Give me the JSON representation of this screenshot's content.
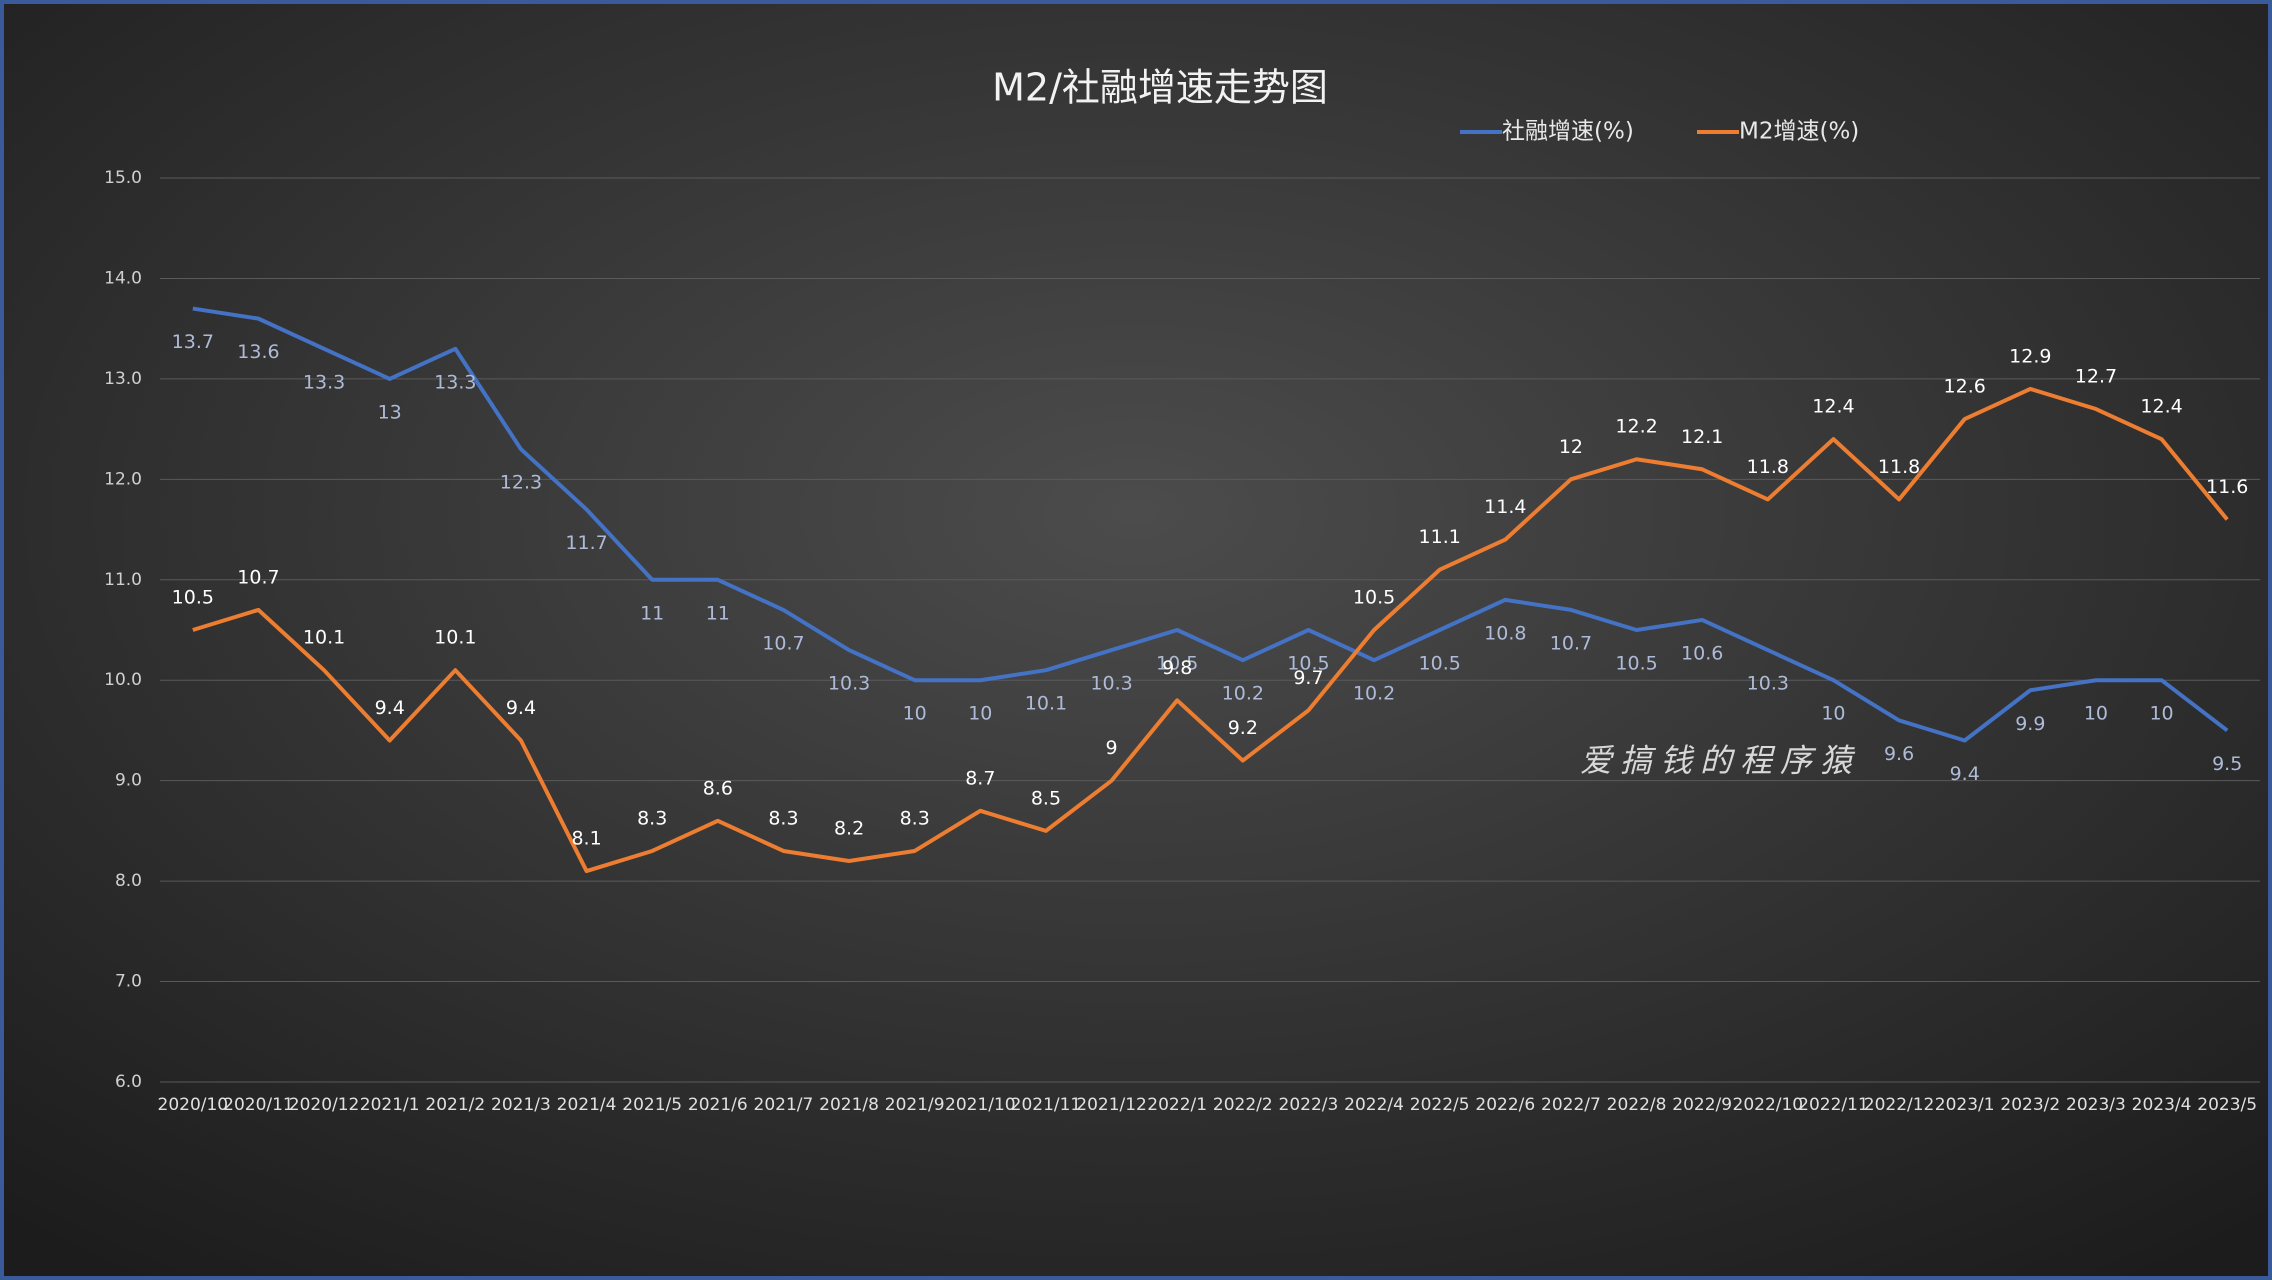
{
  "chart_data": {
    "type": "line",
    "title": "M2/社融增速走势图",
    "categories": [
      "2020/10",
      "2020/11",
      "2020/12",
      "2021/1",
      "2021/2",
      "2021/3",
      "2021/4",
      "2021/5",
      "2021/6",
      "2021/7",
      "2021/8",
      "2021/9",
      "2021/10",
      "2021/11",
      "2021/12",
      "2022/1",
      "2022/2",
      "2022/3",
      "2022/4",
      "2022/5",
      "2022/6",
      "2022/7",
      "2022/8",
      "2022/9",
      "2022/10",
      "2022/11",
      "2022/12",
      "2023/1",
      "2023/2",
      "2023/3",
      "2023/4",
      "2023/5"
    ],
    "series": [
      {
        "name": "社融增速(%)",
        "color": "#4472c4",
        "values": [
          13.7,
          13.6,
          13.3,
          13,
          13.3,
          12.3,
          11.7,
          11,
          11,
          10.7,
          10.3,
          10,
          10,
          10.1,
          10.3,
          10.5,
          10.2,
          10.5,
          10.2,
          10.5,
          10.8,
          10.7,
          10.5,
          10.6,
          10.3,
          10,
          9.6,
          9.4,
          9.9,
          10,
          10,
          9.5
        ]
      },
      {
        "name": "M2增速(%)",
        "color": "#ed7d31",
        "values": [
          10.5,
          10.7,
          10.1,
          9.4,
          10.1,
          9.4,
          8.1,
          8.3,
          8.6,
          8.3,
          8.2,
          8.3,
          8.7,
          8.5,
          9,
          9.8,
          9.2,
          9.7,
          10.5,
          11.1,
          11.4,
          12,
          12.2,
          12.1,
          11.8,
          12.4,
          11.8,
          12.6,
          12.9,
          12.7,
          12.4,
          11.6
        ]
      }
    ],
    "ylim": [
      6,
      15
    ],
    "yticks": [
      {
        "value": 6,
        "label": "6.0"
      },
      {
        "value": 7,
        "label": "7.0"
      },
      {
        "value": 8,
        "label": "8.0"
      },
      {
        "value": 9,
        "label": "9.0"
      },
      {
        "value": 10,
        "label": "10.0"
      },
      {
        "value": 11,
        "label": "11.0"
      },
      {
        "value": 12,
        "label": "12.0"
      },
      {
        "value": 13,
        "label": "13.0"
      },
      {
        "value": 14,
        "label": "14.0"
      },
      {
        "value": 15,
        "label": "15.0"
      }
    ],
    "grid": true,
    "legend": "top-right",
    "annotations": [
      "爱搞钱的程序猿"
    ]
  }
}
